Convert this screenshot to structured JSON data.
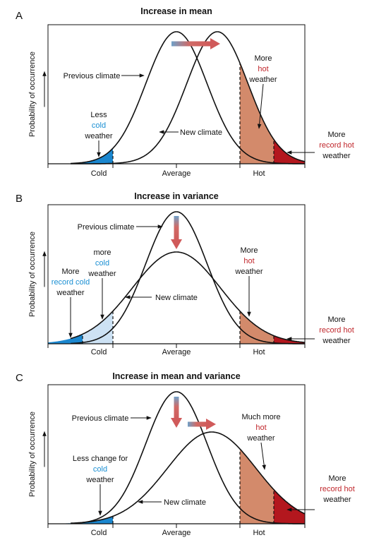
{
  "panels": [
    {
      "letter": "A",
      "title": "Increase in mean",
      "y_axis_label": "Probability of occurrence",
      "x_labels": [
        "Cold",
        "Average",
        "Hot"
      ],
      "annotations": [
        {
          "lines": [
            "Previous climate"
          ]
        },
        {
          "lines": [
            "Less",
            "cold",
            "weather"
          ]
        },
        {
          "lines": [
            "New climate"
          ]
        },
        {
          "lines": [
            "More",
            "hot",
            "weather"
          ]
        },
        {
          "lines": [
            "More",
            "record hot",
            "weather"
          ]
        }
      ]
    },
    {
      "letter": "B",
      "title": "Increase in variance",
      "y_axis_label": "Probability of occurrence",
      "x_labels": [
        "Cold",
        "Average",
        "Hot"
      ],
      "annotations": [
        {
          "lines": [
            "Previous climate"
          ]
        },
        {
          "lines": [
            "More",
            "record cold",
            "weather"
          ]
        },
        {
          "lines": [
            "more",
            "cold",
            "weather"
          ]
        },
        {
          "lines": [
            "New climate"
          ]
        },
        {
          "lines": [
            "More",
            "hot",
            "weather"
          ]
        },
        {
          "lines": [
            "More",
            "record hot",
            "weather"
          ]
        }
      ]
    },
    {
      "letter": "C",
      "title": "Increase in mean and variance",
      "y_axis_label": "Probability of occurrence",
      "x_labels": [
        "Cold",
        "Average",
        "Hot"
      ],
      "annotations": [
        {
          "lines": [
            "Previous climate"
          ]
        },
        {
          "lines": [
            "Less change for",
            "cold",
            "weather"
          ]
        },
        {
          "lines": [
            "New climate"
          ]
        },
        {
          "lines": [
            "Much more",
            "hot",
            "weather"
          ]
        },
        {
          "lines": [
            "More",
            "record hot",
            "weather"
          ]
        }
      ]
    }
  ]
}
